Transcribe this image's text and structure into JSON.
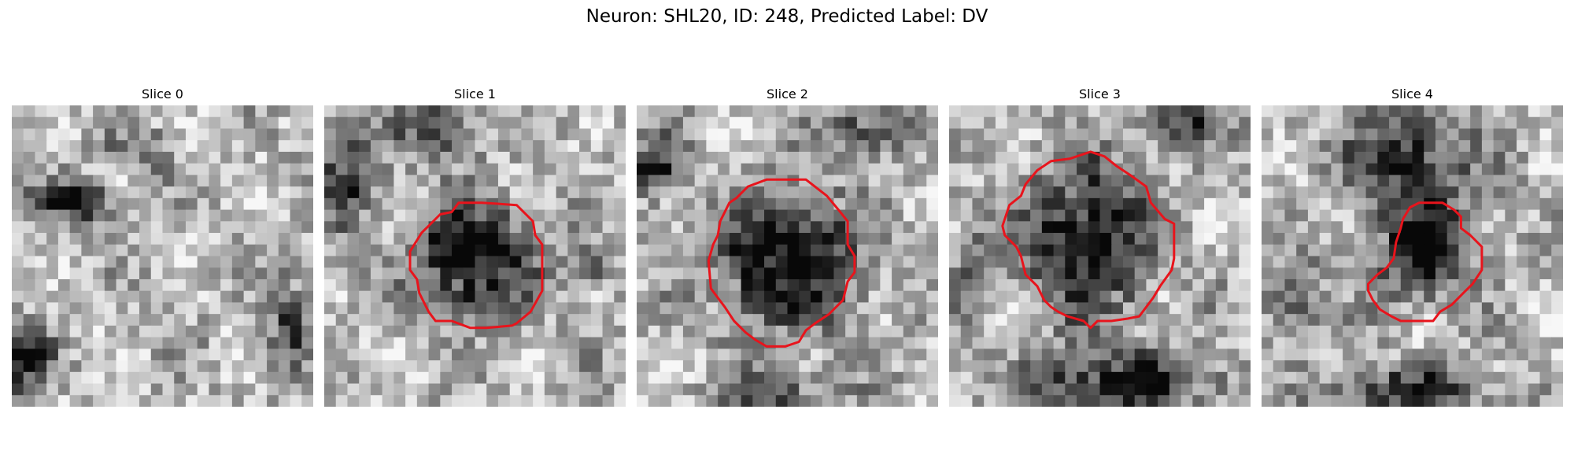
{
  "figure": {
    "title": "Neuron: SHL20, ID: 248, Predicted Label: DV"
  },
  "colors": {
    "contour": "#e8141c",
    "background": "#ffffff"
  },
  "panels": [
    {
      "title": "Slice 0",
      "has_contour": false
    },
    {
      "title": "Slice 1",
      "has_contour": true
    },
    {
      "title": "Slice 2",
      "has_contour": true
    },
    {
      "title": "Slice 3",
      "has_contour": true
    },
    {
      "title": "Slice 4",
      "has_contour": true
    }
  ]
}
